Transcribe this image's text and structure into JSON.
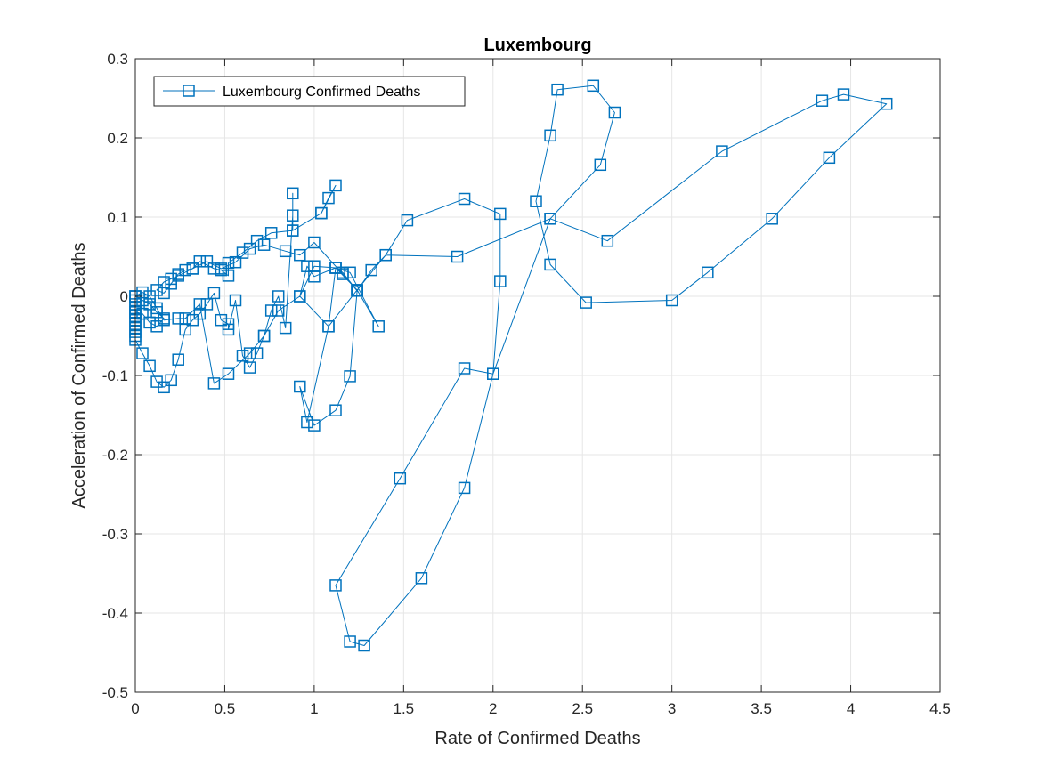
{
  "chart_data": {
    "type": "line",
    "title": "Luxembourg",
    "xlabel": "Rate of Confirmed Deaths",
    "ylabel": "Acceleration of Confirmed Deaths",
    "xlim": [
      0,
      4.5
    ],
    "ylim": [
      -0.5,
      0.3
    ],
    "xticks": [
      0,
      0.5,
      1,
      1.5,
      2,
      2.5,
      3,
      3.5,
      4,
      4.5
    ],
    "yticks": [
      -0.5,
      -0.4,
      -0.3,
      -0.2,
      -0.1,
      0,
      0.1,
      0.2,
      0.3
    ],
    "xtick_labels": [
      "0",
      "0.5",
      "1",
      "1.5",
      "2",
      "2.5",
      "3",
      "3.5",
      "4",
      "4.5"
    ],
    "ytick_labels": [
      "-0.5",
      "-0.4",
      "-0.3",
      "-0.2",
      "-0.1",
      "0",
      "0.1",
      "0.2",
      "0.3"
    ],
    "grid": true,
    "legend_position": "top-left",
    "marker": "square",
    "color": "#0072BD",
    "series": [
      {
        "name": "Luxembourg Confirmed Deaths",
        "x": [
          0,
          0,
          0,
          0,
          0,
          0,
          0,
          0,
          0,
          0,
          0,
          0,
          0.04,
          0.08,
          0.12,
          0.16,
          0.2,
          0.24,
          0.28,
          0.32,
          0.36,
          0.4,
          0.44,
          0.48,
          0.52,
          0.52,
          0.56,
          0.6,
          0.64,
          0.68,
          0.72,
          0.76,
          0.8,
          0.84,
          0.88,
          0.88,
          0.88,
          1.04,
          1.08,
          1.12,
          1.04,
          0.88,
          0.76,
          0.68,
          0.6,
          0.52,
          0.52,
          0.48,
          0.44,
          0.36,
          0.32,
          0.24,
          0.2,
          0.16,
          0.12,
          0.16,
          0.2,
          0.24,
          0.28,
          0.32,
          0.4,
          0.48,
          0.56,
          0.64,
          0.72,
          0.84,
          0.92,
          1.0,
          1.16,
          1.24,
          1.32,
          1.4,
          1.52,
          1.84,
          2.04,
          2.04,
          2.0,
          1.84,
          1.48,
          1.12,
          1.2,
          1.28,
          1.6,
          1.84,
          2.0,
          2.32,
          2.6,
          2.68,
          2.56,
          2.36,
          2.32,
          2.24,
          2.32,
          2.52,
          3.0,
          3.2,
          3.56,
          3.88,
          4.2,
          3.96,
          3.84,
          3.28,
          2.64,
          2.32,
          1.8,
          1.4,
          1.24,
          1.12,
          1.0,
          0.96,
          0.92,
          1.08,
          1.12,
          1.2,
          1.36,
          1.24,
          1.08,
          0.96,
          0.92,
          1.0,
          1.12,
          1.2,
          1.24,
          1.16,
          1.12,
          1.0,
          0.92,
          0.8,
          0.72,
          0.64,
          0.52,
          0.44,
          0.36,
          0.28,
          0.24,
          0.16,
          0.12,
          0.08,
          0.04,
          0.0,
          0.0,
          0.04,
          0.08,
          0.12,
          0.16,
          0.12,
          0.08,
          0.04,
          0.0
        ],
        "y": [
          0,
          -0.005,
          -0.01,
          -0.015,
          -0.02,
          -0.025,
          -0.03,
          -0.035,
          -0.04,
          -0.045,
          -0.05,
          -0.055,
          -0.072,
          -0.088,
          -0.108,
          -0.115,
          -0.106,
          -0.08,
          -0.042,
          -0.03,
          -0.022,
          -0.01,
          0.004,
          -0.03,
          -0.035,
          -0.042,
          -0.005,
          -0.075,
          -0.09,
          -0.072,
          -0.05,
          -0.018,
          0.0,
          -0.04,
          0.102,
          0.13,
          0.083,
          0.105,
          0.124,
          0.14,
          0.105,
          0.083,
          0.08,
          0.07,
          0.055,
          0.042,
          0.026,
          0.033,
          0.035,
          0.044,
          0.035,
          0.026,
          0.022,
          0.018,
          0.008,
          0.004,
          0.016,
          0.028,
          0.033,
          0.035,
          0.044,
          0.035,
          0.043,
          0.06,
          0.065,
          0.057,
          0.052,
          0.068,
          0.028,
          0.007,
          0.033,
          0.052,
          0.096,
          0.123,
          0.104,
          0.019,
          -0.098,
          -0.091,
          -0.23,
          -0.365,
          -0.436,
          -0.441,
          -0.356,
          -0.242,
          -0.098,
          0.098,
          0.166,
          0.232,
          0.266,
          0.261,
          0.203,
          0.12,
          0.04,
          -0.008,
          -0.005,
          0.03,
          0.098,
          0.175,
          0.243,
          0.255,
          0.247,
          0.183,
          0.07,
          0.098,
          0.05,
          0.052,
          0.008,
          0.036,
          0.025,
          0.038,
          0.0,
          -0.038,
          0.036,
          0.03,
          -0.038,
          0.008,
          -0.038,
          -0.159,
          -0.114,
          -0.163,
          -0.144,
          -0.101,
          0.007,
          0.03,
          0.036,
          0.038,
          0.0,
          -0.018,
          -0.05,
          -0.072,
          -0.098,
          -0.11,
          -0.01,
          -0.028,
          -0.028,
          -0.03,
          -0.015,
          0.0,
          0.005,
          0.0,
          -0.02,
          -0.022,
          -0.033,
          -0.038,
          -0.028,
          -0.02,
          -0.01,
          -0.005,
          0.0
        ]
      }
    ]
  }
}
